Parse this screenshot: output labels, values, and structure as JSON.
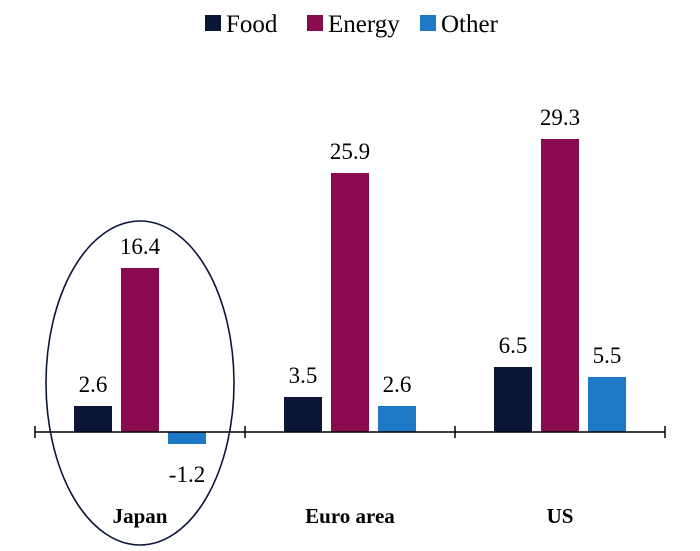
{
  "chart_data": {
    "type": "bar",
    "categories": [
      "Japan",
      "Euro area",
      "US"
    ],
    "series": [
      {
        "name": "Food",
        "color": "#0b1538",
        "values": [
          2.6,
          3.5,
          6.5
        ]
      },
      {
        "name": "Energy",
        "color": "#8a0a4f",
        "values": [
          16.4,
          25.9,
          29.3
        ]
      },
      {
        "name": "Other",
        "color": "#1e78c8",
        "values": [
          -1.2,
          2.6,
          5.5
        ]
      }
    ],
    "legend_position": "top-center",
    "grid": false,
    "highlight": {
      "category": "Japan",
      "shape": "ellipse"
    }
  }
}
